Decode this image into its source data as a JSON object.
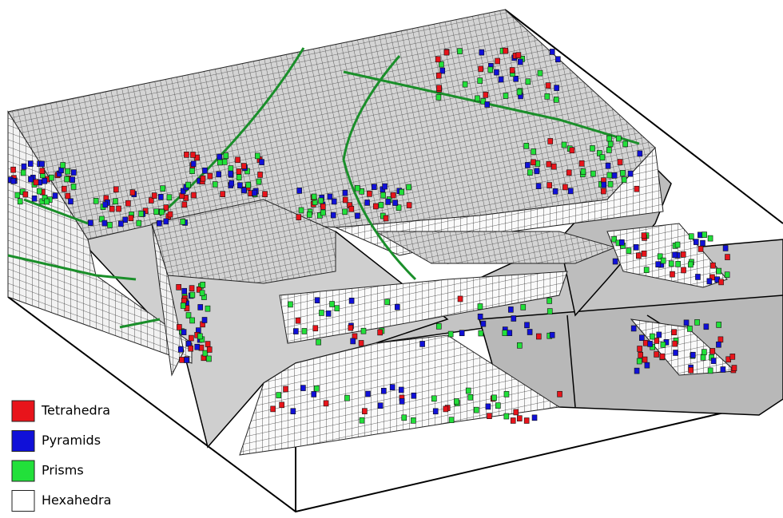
{
  "legend": {
    "items": [
      {
        "label": "Tetrahedra",
        "color": "#e8141b"
      },
      {
        "label": "Pyramids",
        "color": "#1010d8"
      },
      {
        "label": "Prisms",
        "color": "#22e03a"
      },
      {
        "label": "Hexahedra",
        "color": "#ffffff"
      }
    ]
  }
}
